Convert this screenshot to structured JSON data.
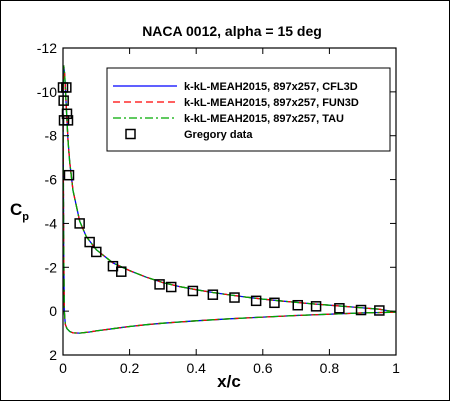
{
  "chart_data": {
    "type": "line",
    "title": "NACA 0012, alpha = 15 deg",
    "xlabel": "x/c",
    "ylabel": "C",
    "ylabel_sub": "p",
    "xlim": [
      0,
      1
    ],
    "ylim": [
      2,
      -12
    ],
    "y_inverted": true,
    "grid": false,
    "legend_position": "top-right",
    "xticks": [
      0,
      0.2,
      0.4,
      0.6,
      0.8,
      1
    ],
    "xtick_labels": [
      "0",
      "0.2",
      "0.4",
      "0.6",
      "0.8",
      "1"
    ],
    "yticks": [
      -12,
      -10,
      -8,
      -6,
      -4,
      -2,
      0,
      2
    ],
    "ytick_labels": [
      "-12",
      "-10",
      "-8",
      "-6",
      "-4",
      "-2",
      "0",
      "2"
    ],
    "series": [
      {
        "name": "k-kL-MEAH2015, 897x257, CFL3D",
        "color": "#0000ff",
        "style": "solid",
        "upper": [
          [
            0,
            -9.5
          ],
          [
            0.002,
            -11.2
          ],
          [
            0.005,
            -10.8
          ],
          [
            0.01,
            -9.3
          ],
          [
            0.015,
            -7.8
          ],
          [
            0.02,
            -6.8
          ],
          [
            0.03,
            -5.5
          ],
          [
            0.05,
            -4.1
          ],
          [
            0.07,
            -3.4
          ],
          [
            0.1,
            -2.8
          ],
          [
            0.15,
            -2.2
          ],
          [
            0.2,
            -1.85
          ],
          [
            0.25,
            -1.55
          ],
          [
            0.3,
            -1.3
          ],
          [
            0.35,
            -1.12
          ],
          [
            0.4,
            -0.98
          ],
          [
            0.45,
            -0.85
          ],
          [
            0.5,
            -0.74
          ],
          [
            0.55,
            -0.64
          ],
          [
            0.6,
            -0.55
          ],
          [
            0.65,
            -0.47
          ],
          [
            0.7,
            -0.4
          ],
          [
            0.75,
            -0.33
          ],
          [
            0.8,
            -0.27
          ],
          [
            0.85,
            -0.21
          ],
          [
            0.9,
            -0.15
          ],
          [
            0.95,
            -0.09
          ],
          [
            1,
            0.05
          ]
        ],
        "lower": [
          [
            0,
            -9.5
          ],
          [
            0.002,
            -3.0
          ],
          [
            0.004,
            0.0
          ],
          [
            0.007,
            0.6
          ],
          [
            0.012,
            0.8
          ],
          [
            0.02,
            0.93
          ],
          [
            0.03,
            0.99
          ],
          [
            0.05,
            1.0
          ],
          [
            0.08,
            0.95
          ],
          [
            0.1,
            0.9
          ],
          [
            0.15,
            0.8
          ],
          [
            0.2,
            0.7
          ],
          [
            0.25,
            0.62
          ],
          [
            0.3,
            0.55
          ],
          [
            0.4,
            0.44
          ],
          [
            0.5,
            0.35
          ],
          [
            0.6,
            0.27
          ],
          [
            0.7,
            0.2
          ],
          [
            0.8,
            0.14
          ],
          [
            0.9,
            0.08
          ],
          [
            1,
            0.05
          ]
        ]
      },
      {
        "name": "k-kL-MEAH2015, 897x257, FUN3D",
        "color": "#ff0000",
        "style": "dashed",
        "upper": [
          [
            0,
            -9.5
          ],
          [
            0.002,
            -11.2
          ],
          [
            0.005,
            -10.8
          ],
          [
            0.01,
            -9.3
          ],
          [
            0.015,
            -7.8
          ],
          [
            0.02,
            -6.8
          ],
          [
            0.03,
            -5.5
          ],
          [
            0.05,
            -4.1
          ],
          [
            0.07,
            -3.4
          ],
          [
            0.1,
            -2.8
          ],
          [
            0.15,
            -2.2
          ],
          [
            0.2,
            -1.85
          ],
          [
            0.25,
            -1.55
          ],
          [
            0.3,
            -1.3
          ],
          [
            0.35,
            -1.12
          ],
          [
            0.4,
            -0.98
          ],
          [
            0.45,
            -0.85
          ],
          [
            0.5,
            -0.74
          ],
          [
            0.55,
            -0.64
          ],
          [
            0.6,
            -0.55
          ],
          [
            0.65,
            -0.47
          ],
          [
            0.7,
            -0.4
          ],
          [
            0.75,
            -0.33
          ],
          [
            0.8,
            -0.27
          ],
          [
            0.85,
            -0.21
          ],
          [
            0.9,
            -0.15
          ],
          [
            0.95,
            -0.09
          ],
          [
            1,
            0.05
          ]
        ],
        "lower": [
          [
            0,
            -9.5
          ],
          [
            0.002,
            -3.0
          ],
          [
            0.004,
            0.0
          ],
          [
            0.007,
            0.6
          ],
          [
            0.012,
            0.8
          ],
          [
            0.02,
            0.93
          ],
          [
            0.03,
            0.99
          ],
          [
            0.05,
            1.0
          ],
          [
            0.08,
            0.95
          ],
          [
            0.1,
            0.9
          ],
          [
            0.15,
            0.8
          ],
          [
            0.2,
            0.7
          ],
          [
            0.25,
            0.62
          ],
          [
            0.3,
            0.55
          ],
          [
            0.4,
            0.44
          ],
          [
            0.5,
            0.35
          ],
          [
            0.6,
            0.27
          ],
          [
            0.7,
            0.2
          ],
          [
            0.8,
            0.14
          ],
          [
            0.9,
            0.08
          ],
          [
            1,
            0.05
          ]
        ]
      },
      {
        "name": "k-kL-MEAH2015, 897x257, TAU",
        "color": "#00aa00",
        "style": "dashdot",
        "upper": [
          [
            0,
            -9.5
          ],
          [
            0.002,
            -11.2
          ],
          [
            0.005,
            -10.8
          ],
          [
            0.01,
            -9.3
          ],
          [
            0.015,
            -7.8
          ],
          [
            0.02,
            -6.8
          ],
          [
            0.03,
            -5.5
          ],
          [
            0.05,
            -4.1
          ],
          [
            0.07,
            -3.4
          ],
          [
            0.1,
            -2.8
          ],
          [
            0.15,
            -2.2
          ],
          [
            0.2,
            -1.85
          ],
          [
            0.25,
            -1.55
          ],
          [
            0.3,
            -1.3
          ],
          [
            0.35,
            -1.12
          ],
          [
            0.4,
            -0.98
          ],
          [
            0.45,
            -0.85
          ],
          [
            0.5,
            -0.74
          ],
          [
            0.55,
            -0.64
          ],
          [
            0.6,
            -0.55
          ],
          [
            0.65,
            -0.47
          ],
          [
            0.7,
            -0.4
          ],
          [
            0.75,
            -0.33
          ],
          [
            0.8,
            -0.27
          ],
          [
            0.85,
            -0.21
          ],
          [
            0.9,
            -0.15
          ],
          [
            0.95,
            -0.09
          ],
          [
            1,
            0.05
          ]
        ],
        "lower": [
          [
            0,
            -9.5
          ],
          [
            0.002,
            -3.0
          ],
          [
            0.004,
            0.0
          ],
          [
            0.007,
            0.6
          ],
          [
            0.012,
            0.8
          ],
          [
            0.02,
            0.93
          ],
          [
            0.03,
            0.99
          ],
          [
            0.05,
            1.0
          ],
          [
            0.08,
            0.95
          ],
          [
            0.1,
            0.9
          ],
          [
            0.15,
            0.8
          ],
          [
            0.2,
            0.7
          ],
          [
            0.25,
            0.62
          ],
          [
            0.3,
            0.55
          ],
          [
            0.4,
            0.44
          ],
          [
            0.5,
            0.35
          ],
          [
            0.6,
            0.27
          ],
          [
            0.7,
            0.2
          ],
          [
            0.8,
            0.14
          ],
          [
            0.9,
            0.08
          ],
          [
            1,
            0.05
          ]
        ]
      },
      {
        "name": "Gregory data",
        "color": "#000000",
        "style": "markers",
        "marker": "square",
        "points": [
          [
            0.0,
            -10.2
          ],
          [
            0.002,
            -9.6
          ],
          [
            0.003,
            -8.7
          ],
          [
            0.01,
            -10.2
          ],
          [
            0.012,
            -9.0
          ],
          [
            0.015,
            -8.7
          ],
          [
            0.018,
            -6.2
          ],
          [
            0.05,
            -4.0
          ],
          [
            0.08,
            -3.15
          ],
          [
            0.1,
            -2.7
          ],
          [
            0.15,
            -2.05
          ],
          [
            0.175,
            -1.8
          ],
          [
            0.29,
            -1.22
          ],
          [
            0.325,
            -1.1
          ],
          [
            0.39,
            -0.92
          ],
          [
            0.45,
            -0.75
          ],
          [
            0.515,
            -0.62
          ],
          [
            0.58,
            -0.47
          ],
          [
            0.635,
            -0.38
          ],
          [
            0.705,
            -0.27
          ],
          [
            0.76,
            -0.22
          ],
          [
            0.83,
            -0.13
          ],
          [
            0.895,
            -0.05
          ],
          [
            0.95,
            -0.03
          ]
        ]
      }
    ]
  }
}
